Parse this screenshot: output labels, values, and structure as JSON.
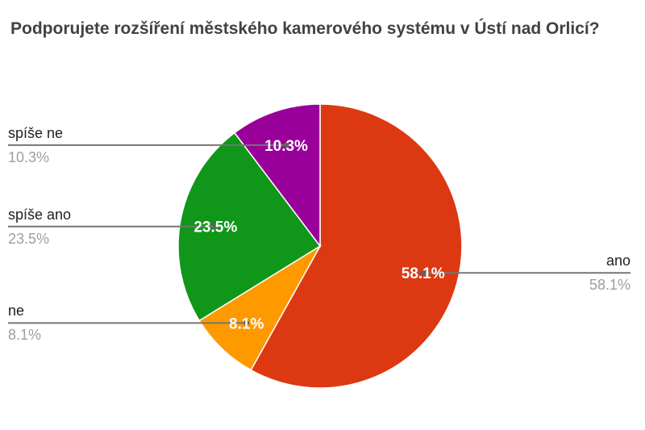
{
  "title": "Podporujete rozšíření městského kamerového systému v Ústí nad Orlicí?",
  "chart_data": {
    "type": "pie",
    "title": "Podporujete rozšíření městského kamerového systému v Ústí nad Orlicí?",
    "start_angle_deg": 0,
    "direction": "clockwise",
    "legend_position": "none",
    "inner_labels": "percent",
    "total_percent": 100.0,
    "slices": [
      {
        "label": "ano",
        "value": 58.1,
        "pct_label": "58.1%",
        "color": "#DC3912",
        "callout_side": "right"
      },
      {
        "label": "ne",
        "value": 8.1,
        "pct_label": "8.1%",
        "color": "#FF9900",
        "callout_side": "left"
      },
      {
        "label": "spíše ano",
        "value": 23.5,
        "pct_label": "23.5%",
        "color": "#109618",
        "callout_side": "left"
      },
      {
        "label": "spíše ne",
        "value": 10.3,
        "pct_label": "10.3%",
        "color": "#990099",
        "callout_side": "left"
      }
    ],
    "style": {
      "title_color": "#424242",
      "callout_name_color": "#212121",
      "callout_pct_color": "#9e9e9e",
      "inside_pct_color": "#ffffff",
      "leader_line_color": "#757575",
      "leader_dot_color": "#616161",
      "slice_separator_color": "#ffffff",
      "background": "#ffffff"
    }
  }
}
